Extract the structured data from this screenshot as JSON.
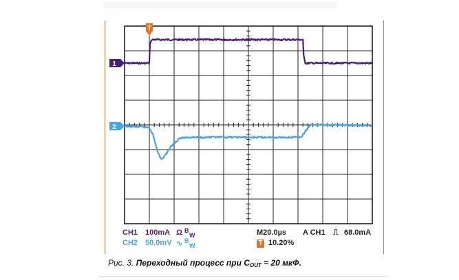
{
  "chart_data": {
    "type": "line",
    "title": "",
    "xlabel": "",
    "ylabel": "",
    "grid": true,
    "divisions": {
      "x": 10,
      "y": 8
    },
    "xlim": [
      0,
      10
    ],
    "ylim": [
      0,
      8
    ],
    "series": [
      {
        "name": "CH1",
        "marker": "1",
        "color": "#4b1c7a",
        "x": [
          0,
          1.0,
          1.03,
          1.1,
          7.2,
          7.23,
          7.3,
          10
        ],
        "y": [
          6.5,
          6.5,
          7.3,
          7.45,
          7.45,
          6.8,
          6.5,
          6.5
        ]
      },
      {
        "name": "CH2",
        "marker": "2",
        "color": "#4ba3e0",
        "x": [
          0,
          1.0,
          1.15,
          1.35,
          1.5,
          1.65,
          1.9,
          2.2,
          2.5,
          3.0,
          7.15,
          7.2,
          7.5,
          8.0,
          10
        ],
        "y": [
          3.95,
          3.9,
          3.6,
          2.85,
          2.6,
          2.8,
          3.15,
          3.45,
          3.5,
          3.5,
          3.5,
          3.6,
          4.0,
          4.0,
          3.97
        ]
      }
    ]
  },
  "trigger_marker": "T",
  "readout": {
    "ch1": "CH1",
    "ch1_scale": "100mA",
    "ch1_symbols": "Ω",
    "ch1_bw": "B",
    "ch1_bw_sub": "W",
    "ch2": "CH2",
    "ch2_scale": "50.0mV",
    "ch2_symbols": "∿",
    "ch2_bw": "B",
    "ch2_bw_sub": "W",
    "timebase": "M20.0µs",
    "trigger": "A  CH1",
    "trigger_slope": "⎍",
    "trigger_level": "68.0mA",
    "trigger_position": "10.20%"
  },
  "caption": {
    "prefix": "Рис. 3.",
    "text": "Переходный процесс при C",
    "sub": "OUT",
    "suffix": " = 20 мкФ."
  },
  "colors": {
    "ch1": "#4b1c7a",
    "ch2": "#4ba3e0",
    "trigger": "#e8731e",
    "frame": "#e07b39"
  }
}
